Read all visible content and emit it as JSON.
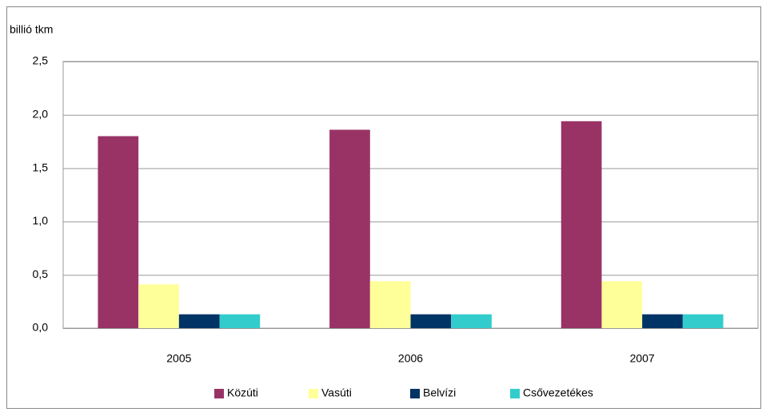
{
  "chart_data": {
    "type": "bar",
    "y_label": "billió tkm",
    "categories": [
      "2005",
      "2006",
      "2007"
    ],
    "series": [
      {
        "name": "Közúti",
        "color": "#993366",
        "values": [
          1.8,
          1.86,
          1.94
        ]
      },
      {
        "name": "Vasúti",
        "color": "#ffff99",
        "values": [
          0.41,
          0.44,
          0.44
        ]
      },
      {
        "name": "Belvízi",
        "color": "#003366",
        "values": [
          0.13,
          0.13,
          0.13
        ]
      },
      {
        "name": "Csővezetékes",
        "color": "#33cccc",
        "values": [
          0.13,
          0.13,
          0.13
        ]
      }
    ],
    "ylim": [
      0,
      2.5
    ],
    "yticks": [
      {
        "value": 0,
        "label": "0,0"
      },
      {
        "value": 0.5,
        "label": "0,5"
      },
      {
        "value": 1,
        "label": "1,0"
      },
      {
        "value": 1.5,
        "label": "1,5"
      },
      {
        "value": 2,
        "label": "2,0"
      },
      {
        "value": 2.5,
        "label": "2,5"
      }
    ],
    "grid": true,
    "legend": "bottom"
  }
}
